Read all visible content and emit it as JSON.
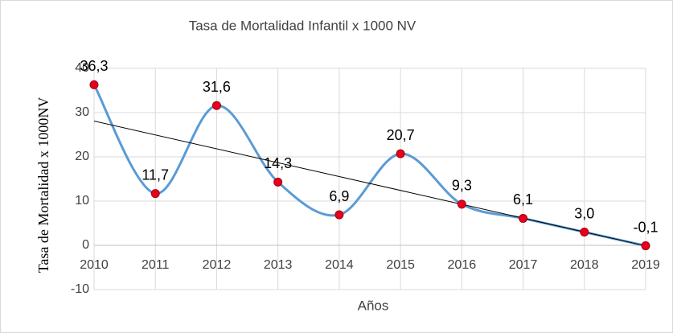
{
  "chart_data": {
    "type": "line",
    "title": "Tasa de Mortalidad Infantil x 1000 NV",
    "x_label": "Años",
    "y_label": "Tasa de Mortalidad x 1000NV",
    "categories": [
      "2010",
      "2011",
      "2012",
      "2013",
      "2014",
      "2015",
      "2016",
      "2017",
      "2018",
      "2019"
    ],
    "series": [
      {
        "name": "Tasa de Mortalidad Infantil",
        "color": "#5b9bd5",
        "marker_color": "#e8001c",
        "values": [
          36.3,
          11.7,
          31.6,
          14.3,
          6.9,
          20.7,
          9.3,
          6.1,
          3.0,
          -0.1
        ],
        "value_labels": [
          "36,3",
          "11,7",
          "31,6",
          "14,3",
          "6,9",
          "20,7",
          "9,3",
          "6,1",
          "3,0",
          "-0,1"
        ]
      }
    ],
    "ylim": [
      -10,
      40
    ],
    "yticks": [
      -10,
      0,
      10,
      20,
      30,
      40
    ],
    "grid": true,
    "smooth": true,
    "trendline": true,
    "trendline_color": "#000000"
  }
}
